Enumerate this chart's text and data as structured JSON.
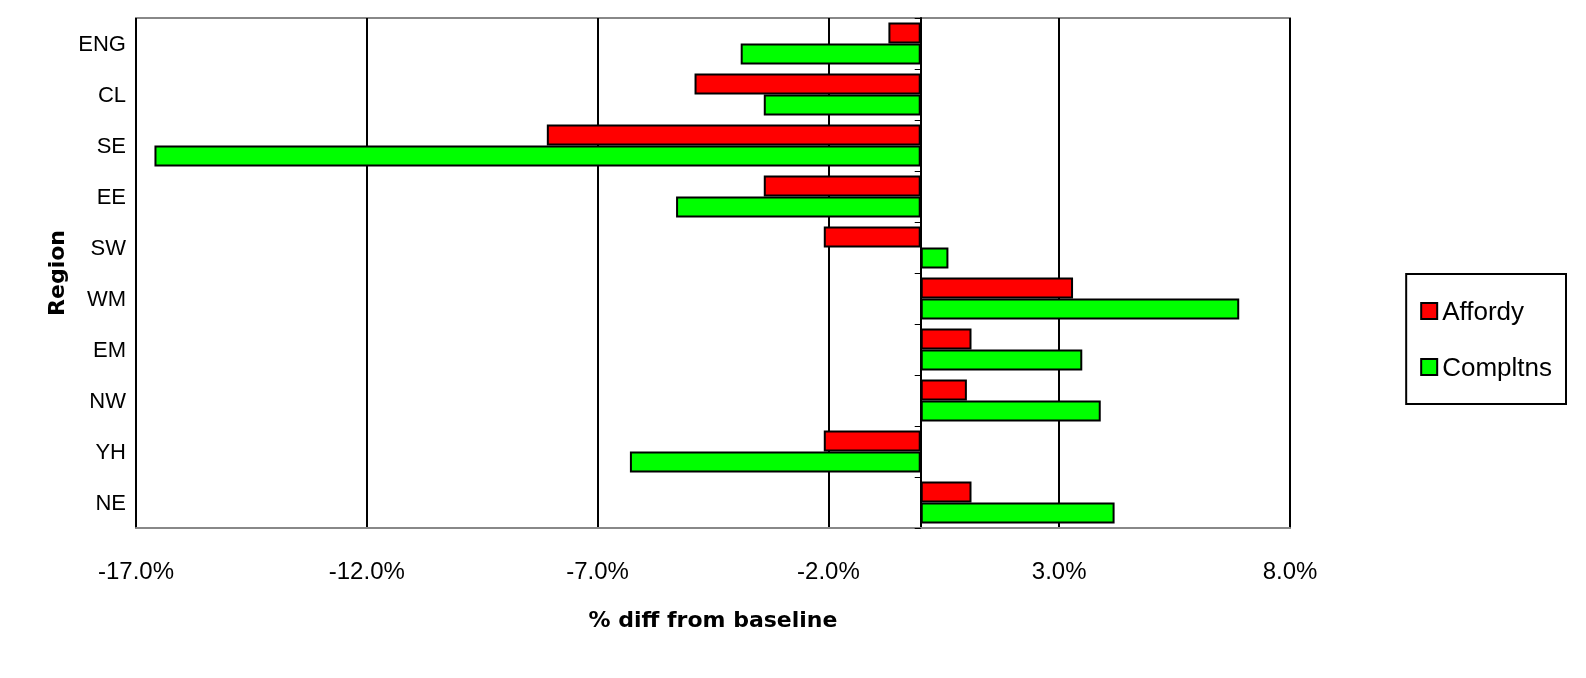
{
  "chart_data": {
    "type": "bar",
    "orientation": "horizontal",
    "xlabel": "% diff from baseline",
    "ylabel": "Region",
    "categories": [
      "ENG",
      "CL",
      "SE",
      "EE",
      "SW",
      "WM",
      "EM",
      "NW",
      "YH",
      "NE"
    ],
    "series": [
      {
        "name": "Affordy",
        "color": "#ff0000",
        "values": [
          -0.7,
          -4.9,
          -8.1,
          -3.4,
          -2.1,
          3.3,
          1.1,
          1.0,
          -2.1,
          1.1
        ]
      },
      {
        "name": "Compltns",
        "color": "#00ff00",
        "values": [
          -3.9,
          -3.4,
          -16.6,
          -5.3,
          0.6,
          6.9,
          3.5,
          3.9,
          -6.3,
          4.2
        ]
      }
    ],
    "xlim": [
      -17,
      8
    ],
    "xticks": [
      {
        "value": -17,
        "label": "-17.0%"
      },
      {
        "value": -12,
        "label": "-12.0%"
      },
      {
        "value": -7,
        "label": "-7.0%"
      },
      {
        "value": -2,
        "label": "-2.0%"
      },
      {
        "value": 3,
        "label": "3.0%"
      },
      {
        "value": 8,
        "label": "8.0%"
      }
    ],
    "grid": "x",
    "legend": "right"
  }
}
